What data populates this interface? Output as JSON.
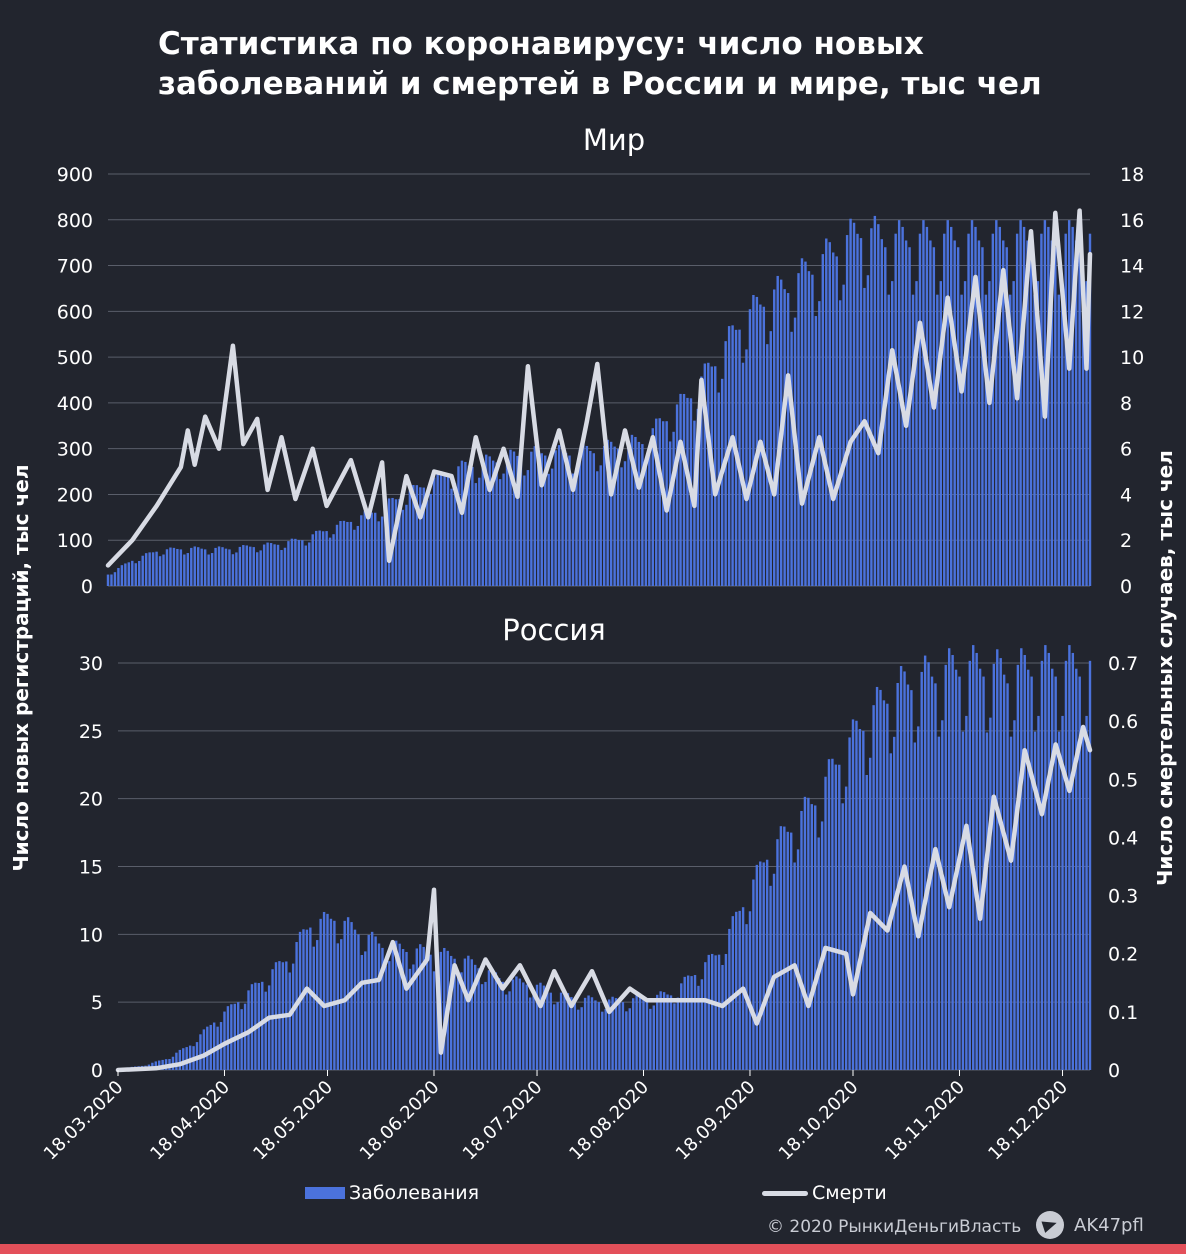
{
  "title_lines": [
    "Статистика по коронавирусу: число новых",
    "заболеваний и смертей в России и мире, тыс чел"
  ],
  "colors": {
    "background": "#22252e",
    "cases": "#4b72dc",
    "deaths": "#d8dbe4",
    "grid": "#5a5e6a",
    "accent": "#e3505a"
  },
  "legend": {
    "cases_label": "Заболевания",
    "deaths_label": "Смерти"
  },
  "footer": {
    "copyright": "© 2020  РынкиДеньгиВласть",
    "handle": "AK47pfl",
    "icon": "telegram-icon"
  },
  "chart_data": [
    {
      "type": "bar+line",
      "title": "Мир",
      "ylabel": "Число новых регистраций, тыс чел",
      "y2label": "Число смертельных случаев, тыс чел",
      "ylim": [
        0,
        900
      ],
      "y_ticks": [
        0,
        100,
        200,
        300,
        400,
        500,
        600,
        700,
        800,
        900
      ],
      "y2lim": [
        0,
        18
      ],
      "y2_ticks": [
        "0",
        "2",
        "4",
        "6",
        "8",
        "10",
        "12",
        "14",
        "16",
        "18"
      ],
      "x_start": "2020-03-18",
      "x_end": "2020-12-26",
      "grid": "horizontal",
      "series": [
        {
          "name": "Заболевания",
          "kind": "bar",
          "axis": "left",
          "sampling": "weekly",
          "values": [
            25,
            55,
            75,
            80,
            80,
            80,
            85,
            90,
            100,
            120,
            140,
            160,
            190,
            215,
            245,
            260,
            270,
            280,
            285,
            285,
            290,
            300,
            310,
            360,
            410,
            480,
            560,
            610,
            640,
            680,
            720,
            760,
            740
          ]
        },
        {
          "name": "Смерти",
          "kind": "line",
          "axis": "right",
          "points": [
            [
              "2020-03-18",
              0.9
            ],
            [
              "2020-03-25",
              2.0
            ],
            [
              "2020-04-01",
              3.5
            ],
            [
              "2020-04-08",
              5.2
            ],
            [
              "2020-04-10",
              6.8
            ],
            [
              "2020-04-12",
              5.3
            ],
            [
              "2020-04-15",
              7.4
            ],
            [
              "2020-04-19",
              6.0
            ],
            [
              "2020-04-23",
              10.5
            ],
            [
              "2020-04-26",
              6.2
            ],
            [
              "2020-04-30",
              7.3
            ],
            [
              "2020-05-03",
              4.2
            ],
            [
              "2020-05-07",
              6.5
            ],
            [
              "2020-05-11",
              3.8
            ],
            [
              "2020-05-16",
              6.0
            ],
            [
              "2020-05-20",
              3.5
            ],
            [
              "2020-05-27",
              5.5
            ],
            [
              "2020-06-01",
              3.0
            ],
            [
              "2020-06-05",
              5.4
            ],
            [
              "2020-06-07",
              1.1
            ],
            [
              "2020-06-12",
              4.8
            ],
            [
              "2020-06-16",
              3.0
            ],
            [
              "2020-06-20",
              5.0
            ],
            [
              "2020-06-25",
              4.8
            ],
            [
              "2020-06-28",
              3.2
            ],
            [
              "2020-07-02",
              6.5
            ],
            [
              "2020-07-06",
              4.2
            ],
            [
              "2020-07-10",
              6.0
            ],
            [
              "2020-07-14",
              3.9
            ],
            [
              "2020-07-17",
              9.6
            ],
            [
              "2020-07-21",
              4.4
            ],
            [
              "2020-07-26",
              6.8
            ],
            [
              "2020-07-30",
              4.2
            ],
            [
              "2020-08-03",
              7.2
            ],
            [
              "2020-08-06",
              9.7
            ],
            [
              "2020-08-10",
              4.0
            ],
            [
              "2020-08-14",
              6.8
            ],
            [
              "2020-08-18",
              4.3
            ],
            [
              "2020-08-22",
              6.5
            ],
            [
              "2020-08-26",
              3.3
            ],
            [
              "2020-08-30",
              6.3
            ],
            [
              "2020-09-03",
              3.5
            ],
            [
              "2020-09-05",
              9.0
            ],
            [
              "2020-09-09",
              4.0
            ],
            [
              "2020-09-14",
              6.5
            ],
            [
              "2020-09-18",
              3.8
            ],
            [
              "2020-09-22",
              6.3
            ],
            [
              "2020-09-26",
              4.0
            ],
            [
              "2020-09-30",
              9.2
            ],
            [
              "2020-10-04",
              3.6
            ],
            [
              "2020-10-09",
              6.5
            ],
            [
              "2020-10-13",
              3.8
            ],
            [
              "2020-10-18",
              6.3
            ],
            [
              "2020-10-22",
              7.2
            ],
            [
              "2020-10-26",
              5.8
            ],
            [
              "2020-10-30",
              10.3
            ],
            [
              "2020-11-03",
              7.0
            ],
            [
              "2020-11-07",
              11.5
            ],
            [
              "2020-11-11",
              7.8
            ],
            [
              "2020-11-15",
              12.6
            ],
            [
              "2020-11-19",
              8.5
            ],
            [
              "2020-11-23",
              13.5
            ],
            [
              "2020-11-27",
              8.0
            ],
            [
              "2020-12-01",
              13.8
            ],
            [
              "2020-12-05",
              8.2
            ],
            [
              "2020-12-09",
              15.5
            ],
            [
              "2020-12-13",
              7.4
            ],
            [
              "2020-12-16",
              16.3
            ],
            [
              "2020-12-20",
              9.5
            ],
            [
              "2020-12-23",
              16.4
            ],
            [
              "2020-12-25",
              9.5
            ],
            [
              "2020-12-26",
              14.5
            ]
          ]
        }
      ]
    },
    {
      "type": "bar+line",
      "title": "Россия",
      "ylabel": "Число новых регистраций, тыс чел",
      "y2label": "Число смертельных случаев, тыс чел",
      "ylim": [
        0,
        30
      ],
      "y_ticks": [
        0,
        5,
        10,
        15,
        20,
        25,
        30
      ],
      "y2lim": [
        0,
        0.7
      ],
      "y2_ticks": [
        "0",
        "0.1",
        "0.2",
        "0.3",
        "0.4",
        "0.5",
        "0.6",
        "0.7"
      ],
      "x_start": "2020-03-18",
      "x_end": "2020-12-26",
      "x_ticks": [
        "18.03.2020",
        "18.04.2020",
        "18.05.2020",
        "18.06.2020",
        "18.07.2020",
        "18.08.2020",
        "18.09.2020",
        "18.10.2020",
        "18.11.2020",
        "18.12.2020"
      ],
      "grid": "horizontal",
      "series": [
        {
          "name": "Заболевания",
          "kind": "bar",
          "axis": "left",
          "sampling": "weekly",
          "values": [
            0.1,
            0.3,
            0.8,
            1.8,
            3.5,
            5.0,
            6.5,
            8.0,
            10.5,
            11.0,
            10.0,
            9.0,
            8.7,
            8.5,
            8.2,
            7.5,
            6.5,
            6.3,
            5.7,
            5.2,
            5.0,
            5.0,
            5.2,
            5.5,
            7.0,
            8.5,
            12.0,
            15.5,
            17.5,
            19.5,
            22.5,
            25.0,
            27.0,
            28.0,
            28.5,
            29.0,
            29.0,
            28.5,
            29.0
          ]
        },
        {
          "name": "Смерти",
          "kind": "line",
          "axis": "right",
          "points": [
            [
              "2020-03-18",
              0.0
            ],
            [
              "2020-03-29",
              0.003
            ],
            [
              "2020-04-05",
              0.01
            ],
            [
              "2020-04-12",
              0.025
            ],
            [
              "2020-04-18",
              0.045
            ],
            [
              "2020-04-25",
              0.065
            ],
            [
              "2020-05-01",
              0.09
            ],
            [
              "2020-05-07",
              0.095
            ],
            [
              "2020-05-12",
              0.14
            ],
            [
              "2020-05-17",
              0.11
            ],
            [
              "2020-05-23",
              0.12
            ],
            [
              "2020-05-28",
              0.15
            ],
            [
              "2020-06-02",
              0.155
            ],
            [
              "2020-06-06",
              0.22
            ],
            [
              "2020-06-10",
              0.14
            ],
            [
              "2020-06-16",
              0.19
            ],
            [
              "2020-06-18",
              0.31
            ],
            [
              "2020-06-20",
              0.03
            ],
            [
              "2020-06-24",
              0.18
            ],
            [
              "2020-06-28",
              0.12
            ],
            [
              "2020-07-03",
              0.19
            ],
            [
              "2020-07-08",
              0.14
            ],
            [
              "2020-07-13",
              0.18
            ],
            [
              "2020-07-19",
              0.11
            ],
            [
              "2020-07-23",
              0.17
            ],
            [
              "2020-07-28",
              0.11
            ],
            [
              "2020-08-03",
              0.17
            ],
            [
              "2020-08-08",
              0.1
            ],
            [
              "2020-08-14",
              0.14
            ],
            [
              "2020-08-19",
              0.12
            ],
            [
              "2020-08-24",
              0.12
            ],
            [
              "2020-08-30",
              0.12
            ],
            [
              "2020-09-05",
              0.12
            ],
            [
              "2020-09-10",
              0.11
            ],
            [
              "2020-09-16",
              0.14
            ],
            [
              "2020-09-20",
              0.08
            ],
            [
              "2020-09-25",
              0.16
            ],
            [
              "2020-10-01",
              0.18
            ],
            [
              "2020-10-05",
              0.11
            ],
            [
              "2020-10-10",
              0.21
            ],
            [
              "2020-10-16",
              0.2
            ],
            [
              "2020-10-18",
              0.13
            ],
            [
              "2020-10-23",
              0.27
            ],
            [
              "2020-10-28",
              0.24
            ],
            [
              "2020-11-02",
              0.35
            ],
            [
              "2020-11-06",
              0.23
            ],
            [
              "2020-11-11",
              0.38
            ],
            [
              "2020-11-15",
              0.28
            ],
            [
              "2020-11-20",
              0.42
            ],
            [
              "2020-11-24",
              0.26
            ],
            [
              "2020-11-28",
              0.47
            ],
            [
              "2020-12-03",
              0.36
            ],
            [
              "2020-12-07",
              0.55
            ],
            [
              "2020-12-12",
              0.44
            ],
            [
              "2020-12-16",
              0.56
            ],
            [
              "2020-12-20",
              0.48
            ],
            [
              "2020-12-24",
              0.59
            ],
            [
              "2020-12-26",
              0.55
            ]
          ]
        }
      ]
    }
  ]
}
